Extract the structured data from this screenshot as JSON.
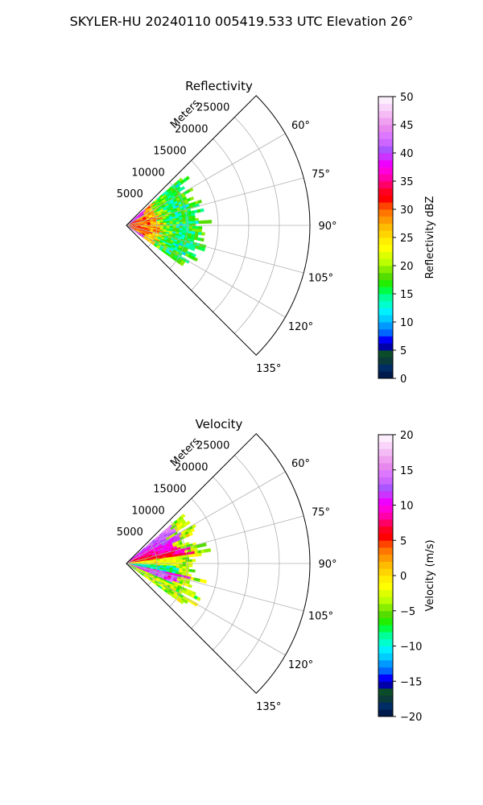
{
  "title": "SKYLER-HU  20240110  005419.533 UTC Elevation 26°",
  "chart_data": [
    {
      "type": "heatmap",
      "title": "Reflectivity",
      "projection": "polar-sector",
      "theta_range_deg": [
        45,
        135
      ],
      "r_range_m": [
        0,
        30000
      ],
      "r_axis_label": "Meters",
      "r_ticks": [
        5000,
        10000,
        15000,
        20000,
        25000
      ],
      "r_tick_labels": [
        "5000",
        "10000",
        "15000",
        "20000",
        "25000"
      ],
      "theta_ticks": [
        60,
        75,
        90,
        105,
        120,
        135
      ],
      "theta_tick_labels": [
        "60°",
        "75°",
        "90°",
        "105°",
        "120°",
        "135°"
      ],
      "grid": true,
      "data_extent": {
        "theta_deg": [
          49,
          126
        ],
        "r_max_m": [
          10000,
          14000
        ]
      },
      "colorbar": {
        "label": "Reflectivity dBZ",
        "range": [
          0,
          50
        ],
        "ticks": [
          0,
          5,
          10,
          15,
          20,
          25,
          30,
          35,
          40,
          45,
          50
        ],
        "tick_labels": [
          "0",
          "5",
          "10",
          "15",
          "20",
          "25",
          "30",
          "35",
          "40",
          "45",
          "50"
        ],
        "colors": [
          "#001a4d",
          "#002c66",
          "#0a3a3a",
          "#0b4d2a",
          "#0000aa",
          "#0000ff",
          "#0066ff",
          "#0099ff",
          "#00ccff",
          "#00f0ff",
          "#00ffcc",
          "#00ff99",
          "#00ff44",
          "#22ee00",
          "#55dd00",
          "#88ee00",
          "#bbff00",
          "#ddff00",
          "#ffff00",
          "#ffee00",
          "#ffd400",
          "#ffbb00",
          "#ff9900",
          "#ff7700",
          "#ff4400",
          "#ff0000",
          "#ff0022",
          "#ff0066",
          "#ff00aa",
          "#ff00dd",
          "#ee00ff",
          "#cc33ff",
          "#aa55ff",
          "#cc66ff",
          "#dd77ff",
          "#e888ee",
          "#f0a0f0",
          "#f5bbf5",
          "#f9d5f9",
          "#fdeefd"
        ]
      }
    },
    {
      "type": "heatmap",
      "title": "Velocity",
      "projection": "polar-sector",
      "theta_range_deg": [
        45,
        135
      ],
      "r_range_m": [
        0,
        30000
      ],
      "r_axis_label": "Meters",
      "r_ticks": [
        5000,
        10000,
        15000,
        20000,
        25000
      ],
      "r_tick_labels": [
        "5000",
        "10000",
        "15000",
        "20000",
        "25000"
      ],
      "theta_ticks": [
        60,
        75,
        90,
        105,
        120,
        135
      ],
      "theta_tick_labels": [
        "60°",
        "75°",
        "90°",
        "105°",
        "120°",
        "135°"
      ],
      "grid": true,
      "data_extent": {
        "theta_deg": [
          49,
          126
        ],
        "r_max_m": [
          10000,
          14000
        ]
      },
      "colorbar": {
        "label": "Velocity (m/s)",
        "range": [
          -20,
          20
        ],
        "ticks": [
          -20,
          -15,
          -10,
          -5,
          0,
          5,
          10,
          15,
          20
        ],
        "tick_labels": [
          "−20",
          "−15",
          "−10",
          "−5",
          "0",
          "5",
          "10",
          "15",
          "20"
        ],
        "colors": [
          "#001a4d",
          "#002c66",
          "#0a3a3a",
          "#0b4d2a",
          "#0000aa",
          "#0000ff",
          "#0066ff",
          "#0099ff",
          "#00ccff",
          "#00f0ff",
          "#00ffcc",
          "#00ff99",
          "#00ff44",
          "#22ee00",
          "#55dd00",
          "#88ee00",
          "#bbff00",
          "#ddff00",
          "#ffff00",
          "#ffee00",
          "#ffd400",
          "#ffbb00",
          "#ff9900",
          "#ff7700",
          "#ff4400",
          "#ff0000",
          "#ff0022",
          "#ff0066",
          "#ff00aa",
          "#ff00dd",
          "#ee00ff",
          "#cc33ff",
          "#aa55ff",
          "#cc66ff",
          "#dd77ff",
          "#e888ee",
          "#f0a0f0",
          "#f5bbf5",
          "#f9d5f9",
          "#fdeefd"
        ]
      }
    }
  ]
}
